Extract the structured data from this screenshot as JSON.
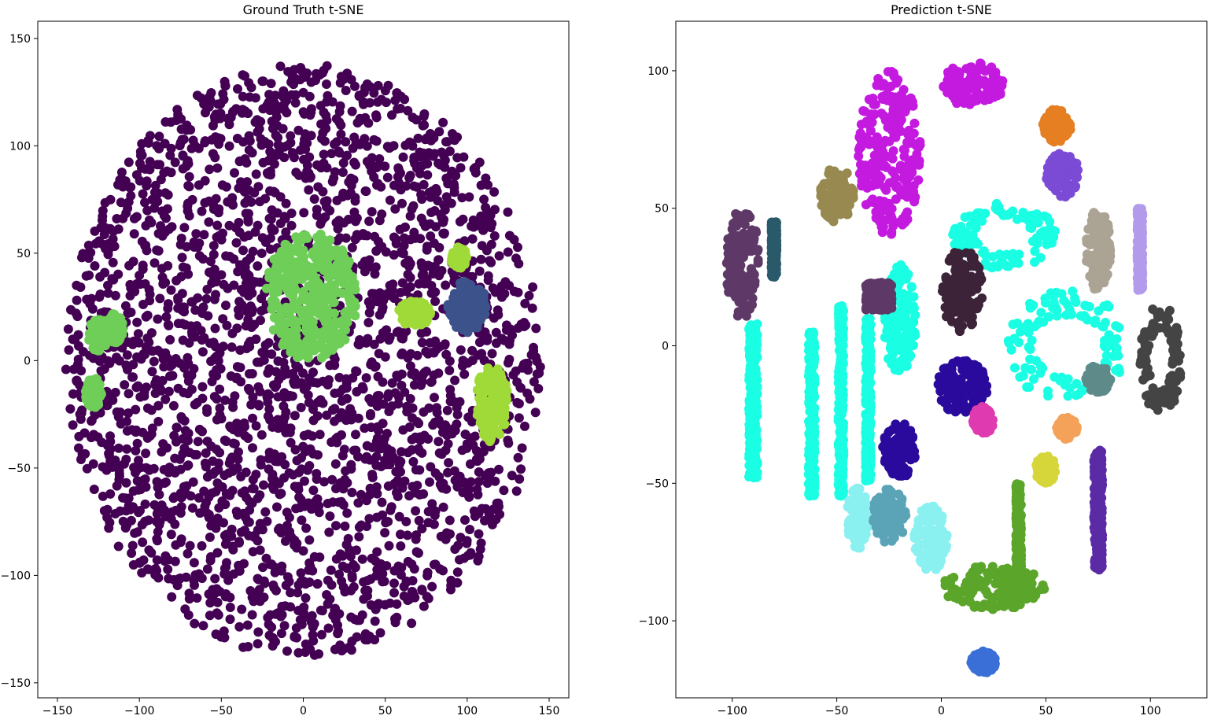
{
  "chart_data": [
    {
      "type": "scatter",
      "title": "Ground Truth t-SNE",
      "xlabel": "",
      "ylabel": "",
      "xlim": [
        -162,
        162
      ],
      "ylim": [
        -157,
        158
      ],
      "xticks": [
        -150,
        -100,
        -50,
        0,
        50,
        100,
        150
      ],
      "yticks": [
        -150,
        -100,
        -50,
        0,
        50,
        100,
        150
      ],
      "xtick_labels": [
        "−150",
        "−100",
        "−50",
        "0",
        "50",
        "100",
        "150"
      ],
      "ytick_labels": [
        "−150",
        "−100",
        "−50",
        "0",
        "50",
        "100",
        "150"
      ],
      "grid": false,
      "colors": {
        "background_cluster": "#440154",
        "green_a": "#6ece58",
        "green_b": "#a0da39",
        "teal": "#35b779",
        "blue": "#3b528b"
      },
      "clusters": [
        {
          "color": "#440154",
          "center": [
            0,
            0
          ],
          "radius": [
            145,
            138
          ],
          "kind": "blob",
          "label": ""
        },
        {
          "color": "#6ece58",
          "center": [
            5,
            30
          ],
          "radius": [
            28,
            30
          ],
          "kind": "blob",
          "label": ""
        },
        {
          "color": "#6ece58",
          "center": [
            -125,
            12
          ],
          "radius": [
            6,
            8
          ],
          "kind": "blob",
          "label": ""
        },
        {
          "color": "#6ece58",
          "center": [
            -115,
            15
          ],
          "radius": [
            5,
            7
          ],
          "kind": "blob",
          "label": ""
        },
        {
          "color": "#6ece58",
          "center": [
            -128,
            -15
          ],
          "radius": [
            5,
            7
          ],
          "kind": "blob",
          "label": ""
        },
        {
          "color": "#a0da39",
          "center": [
            115,
            -20
          ],
          "radius": [
            10,
            18
          ],
          "kind": "blob",
          "label": ""
        },
        {
          "color": "#a0da39",
          "center": [
            95,
            48
          ],
          "radius": [
            5,
            5
          ],
          "kind": "blob",
          "label": ""
        },
        {
          "color": "#a0da39",
          "center": [
            68,
            22
          ],
          "radius": [
            10,
            6
          ],
          "kind": "blob",
          "label": ""
        },
        {
          "color": "#3b528b",
          "center": [
            100,
            25
          ],
          "radius": [
            12,
            12
          ],
          "kind": "blob",
          "label": ""
        }
      ]
    },
    {
      "type": "scatter",
      "title": "Prediction t-SNE",
      "xlabel": "",
      "ylabel": "",
      "xlim": [
        -127,
        127
      ],
      "ylim": [
        -128,
        118
      ],
      "xticks": [
        -100,
        -50,
        0,
        50,
        100
      ],
      "yticks": [
        -100,
        -50,
        0,
        50,
        100
      ],
      "xtick_labels": [
        "−100",
        "−50",
        "0",
        "50",
        "100"
      ],
      "ytick_labels": [
        "−100",
        "−50",
        "0",
        "50",
        "100"
      ],
      "grid": false,
      "clusters": [
        {
          "color": "#c41ae0",
          "center": [
            -25,
            70
          ],
          "radius": [
            15,
            30
          ],
          "kind": "blob"
        },
        {
          "color": "#c41ae0",
          "center": [
            15,
            95
          ],
          "radius": [
            15,
            8
          ],
          "kind": "blob"
        },
        {
          "color": "#978950",
          "center": [
            -50,
            55
          ],
          "radius": [
            8,
            10
          ],
          "kind": "blob"
        },
        {
          "color": "#e67e22",
          "center": [
            55,
            80
          ],
          "radius": [
            7,
            6
          ],
          "kind": "blob"
        },
        {
          "color": "#7b4bd6",
          "center": [
            58,
            62
          ],
          "radius": [
            8,
            8
          ],
          "kind": "blob"
        },
        {
          "color": "#1affe3",
          "center": [
            -90,
            -20
          ],
          "radius": [
            8,
            28
          ],
          "kind": "strip"
        },
        {
          "color": "#1affe3",
          "center": [
            -62,
            -25
          ],
          "radius": [
            6,
            30
          ],
          "kind": "strip"
        },
        {
          "color": "#1affe3",
          "center": [
            -48,
            -20
          ],
          "radius": [
            5,
            35
          ],
          "kind": "strip"
        },
        {
          "color": "#1affe3",
          "center": [
            -35,
            -20
          ],
          "radius": [
            5,
            30
          ],
          "kind": "strip"
        },
        {
          "color": "#1affe3",
          "center": [
            -20,
            10
          ],
          "radius": [
            8,
            20
          ],
          "kind": "blob"
        },
        {
          "color": "#1affe3",
          "center": [
            30,
            40
          ],
          "radius": [
            25,
            12
          ],
          "kind": "dots"
        },
        {
          "color": "#1affe3",
          "center": [
            60,
            0
          ],
          "radius": [
            30,
            20
          ],
          "kind": "dots"
        },
        {
          "color": "#3d2338",
          "center": [
            10,
            20
          ],
          "radius": [
            10,
            15
          ],
          "kind": "blob"
        },
        {
          "color": "#2a0a9c",
          "center": [
            10,
            -15
          ],
          "radius": [
            12,
            10
          ],
          "kind": "blob"
        },
        {
          "color": "#2a0a9c",
          "center": [
            -20,
            -38
          ],
          "radius": [
            8,
            10
          ],
          "kind": "blob"
        },
        {
          "color": "#5ba52a",
          "center": [
            25,
            -88
          ],
          "radius": [
            25,
            8
          ],
          "kind": "blob"
        },
        {
          "color": "#5ba52a",
          "center": [
            37,
            -70
          ],
          "radius": [
            5,
            20
          ],
          "kind": "strip"
        },
        {
          "color": "#8af0f0",
          "center": [
            -40,
            -62
          ],
          "radius": [
            5,
            12
          ],
          "kind": "blob"
        },
        {
          "color": "#8af0f0",
          "center": [
            -5,
            -70
          ],
          "radius": [
            8,
            12
          ],
          "kind": "blob"
        },
        {
          "color": "#5b2aa5",
          "center": [
            75,
            -60
          ],
          "radius": [
            8,
            22
          ],
          "kind": "strip"
        },
        {
          "color": "#aba393",
          "center": [
            75,
            35
          ],
          "radius": [
            6,
            15
          ],
          "kind": "blob"
        },
        {
          "color": "#b39bec",
          "center": [
            95,
            35
          ],
          "radius": [
            5,
            15
          ],
          "kind": "strip"
        },
        {
          "color": "#5e3967",
          "center": [
            -95,
            30
          ],
          "radius": [
            8,
            20
          ],
          "kind": "blob"
        },
        {
          "color": "#5e3967",
          "center": [
            -30,
            18
          ],
          "radius": [
            25,
            5
          ],
          "kind": "strip"
        },
        {
          "color": "#5ba4b8",
          "center": [
            -25,
            -62
          ],
          "radius": [
            8,
            10
          ],
          "kind": "blob"
        },
        {
          "color": "#f4a259",
          "center": [
            60,
            -30
          ],
          "radius": [
            5,
            4
          ],
          "kind": "blob"
        },
        {
          "color": "#444444",
          "center": [
            105,
            -5
          ],
          "radius": [
            10,
            20
          ],
          "kind": "dots"
        },
        {
          "color": "#3a6fd8",
          "center": [
            20,
            -115
          ],
          "radius": [
            6,
            4
          ],
          "kind": "blob"
        },
        {
          "color": "#d6d63a",
          "center": [
            50,
            -45
          ],
          "radius": [
            5,
            5
          ],
          "kind": "blob"
        },
        {
          "color": "#5f8a8a",
          "center": [
            75,
            -12
          ],
          "radius": [
            6,
            5
          ],
          "kind": "blob"
        },
        {
          "color": "#2a5a6a",
          "center": [
            -80,
            35
          ],
          "radius": [
            5,
            10
          ],
          "kind": "strip"
        },
        {
          "color": "#e03ab0",
          "center": [
            20,
            -27
          ],
          "radius": [
            5,
            5
          ],
          "kind": "blob"
        }
      ]
    }
  ]
}
